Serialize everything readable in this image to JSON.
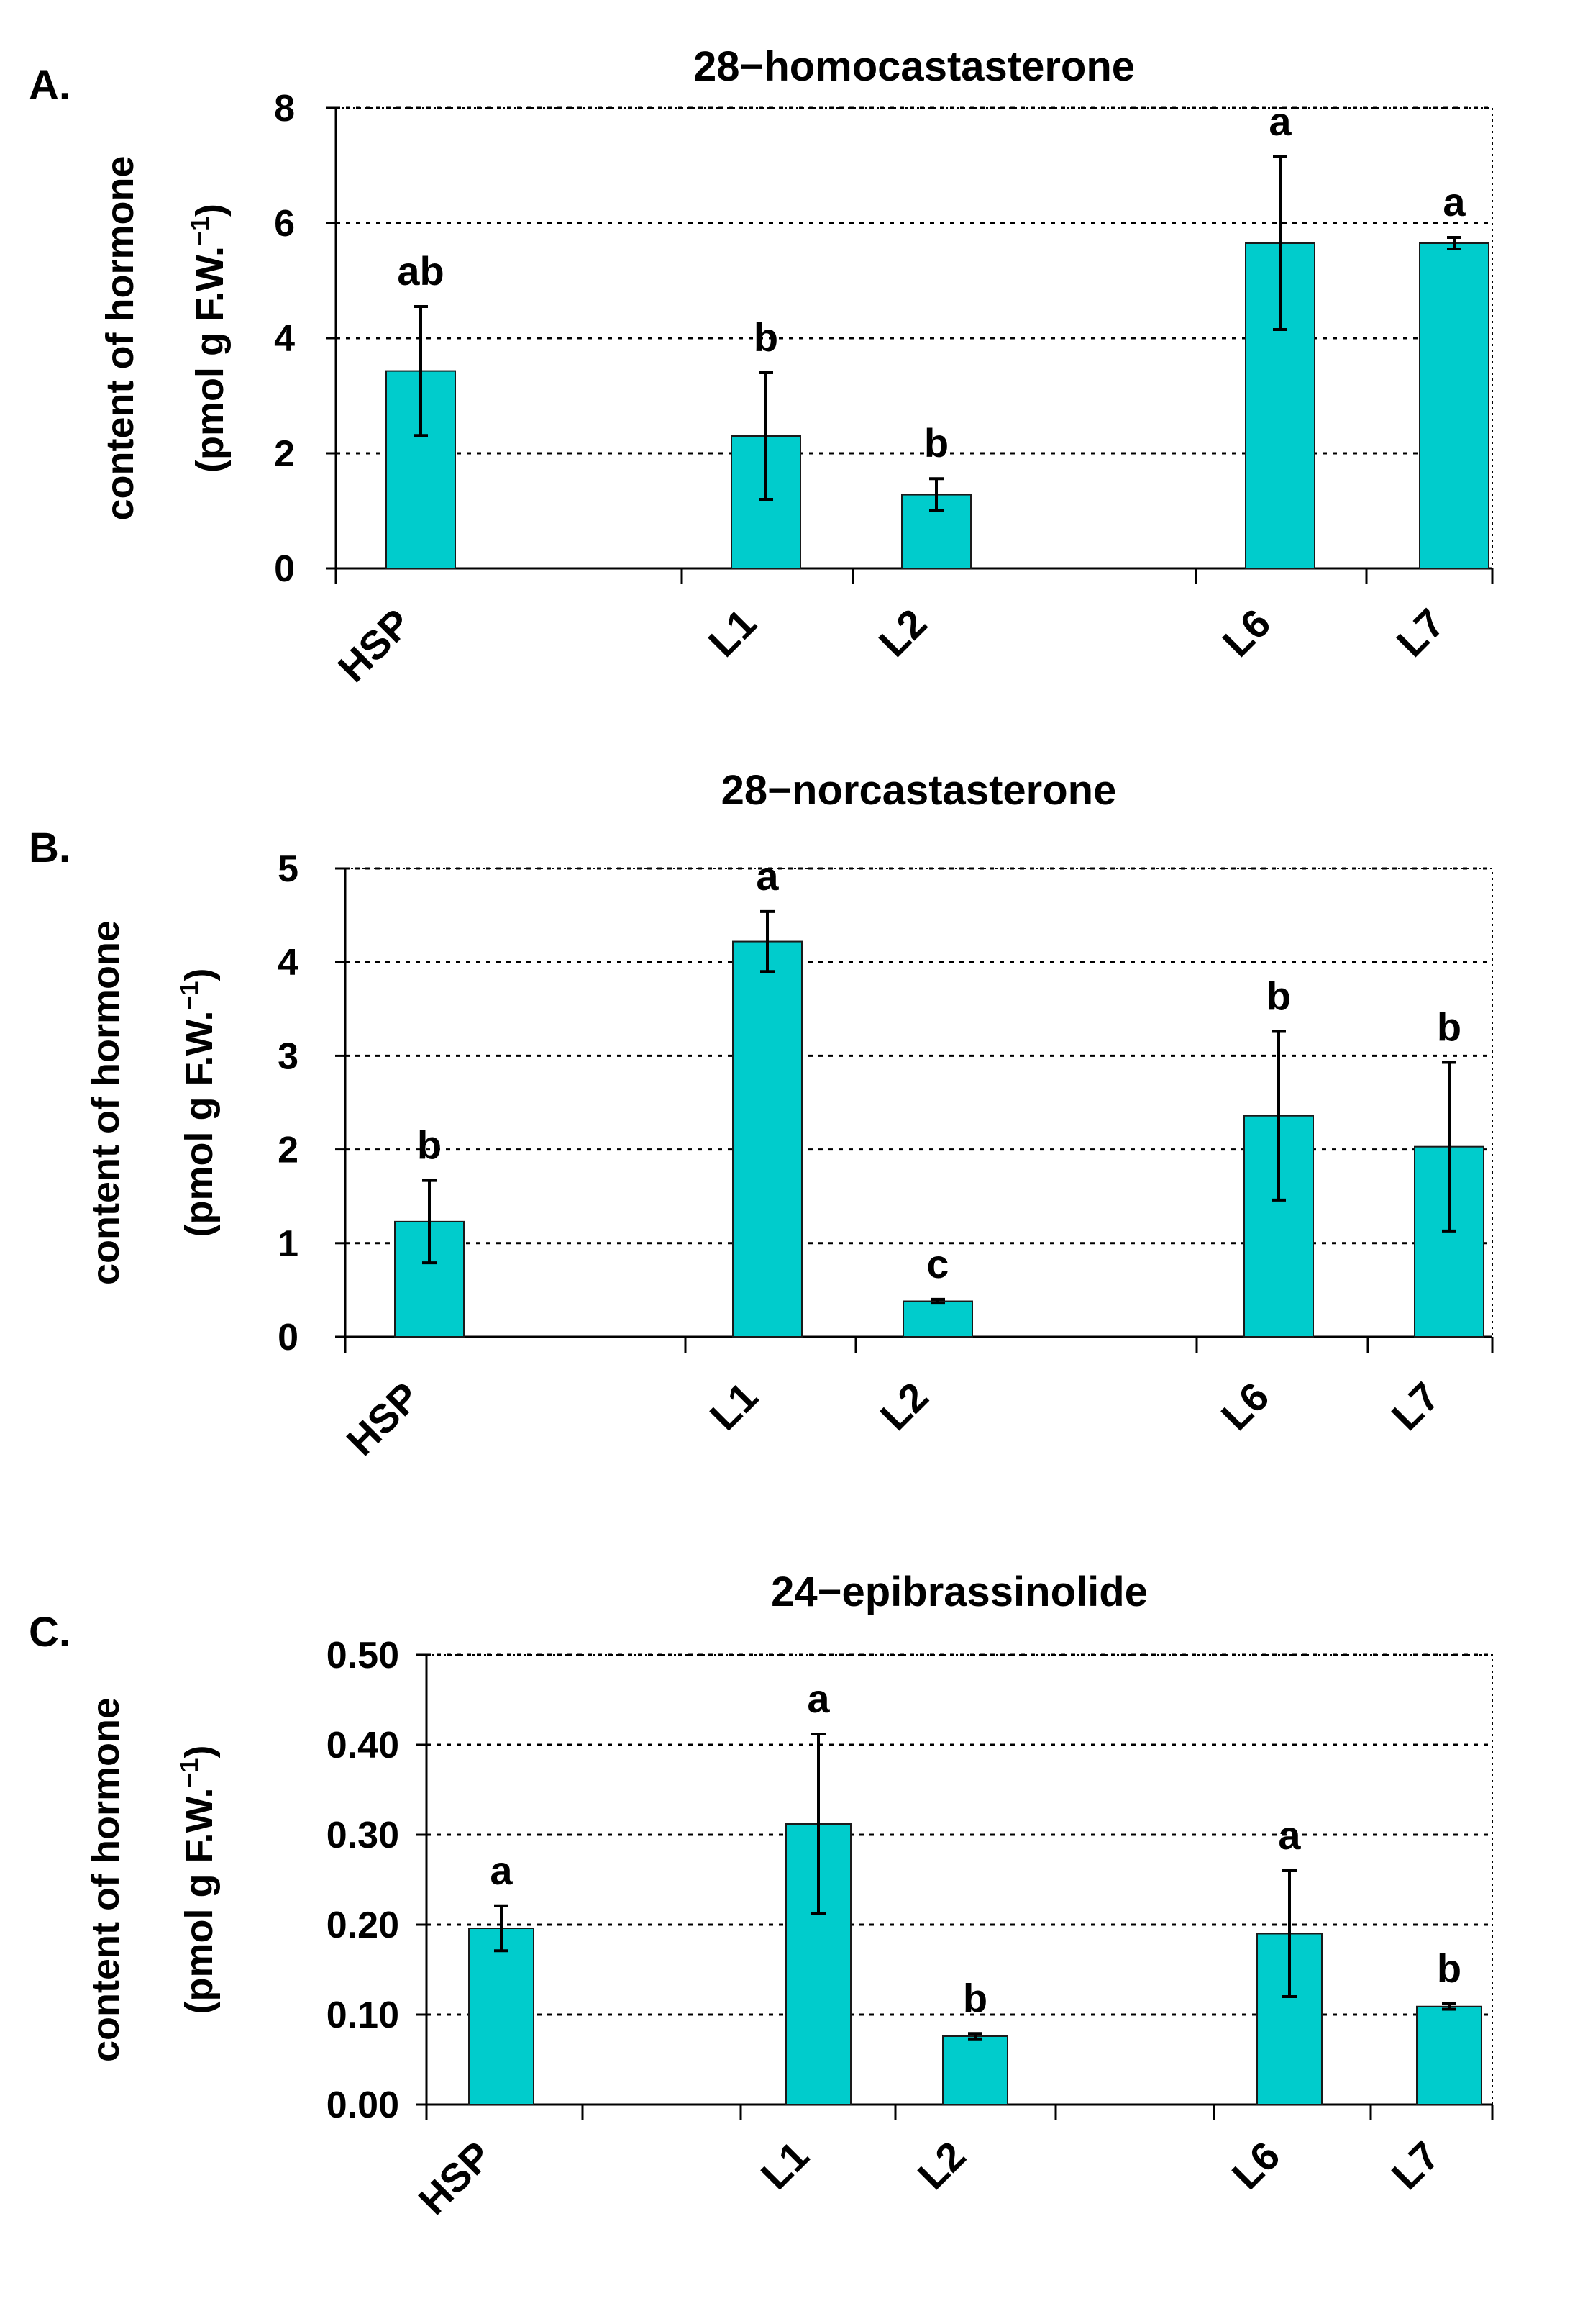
{
  "colors": {
    "bar": "#00CCCC",
    "error": "#000000"
  },
  "chart_data": [
    {
      "panel": "A.",
      "type": "bar",
      "title": "28−homocastasterone",
      "ylabel_line1": "content of hormone",
      "ylabel_line2": "(pmol g F.W.",
      "ylabel_sup": "−1",
      "ylabel_end": ")",
      "categories": [
        "HSP",
        "L1",
        "L2",
        "L6",
        "L7"
      ],
      "values": [
        3.43,
        2.3,
        1.28,
        5.65,
        5.65
      ],
      "errors": [
        1.12,
        1.1,
        0.28,
        1.5,
        0.1
      ],
      "letters": [
        "ab",
        "b",
        "b",
        "a",
        "a"
      ],
      "ylim": [
        0,
        8
      ],
      "yticks": [
        "0",
        "2",
        "4",
        "6",
        "8"
      ],
      "grid": true
    },
    {
      "panel": "B.",
      "type": "bar",
      "title": "28−norcastasterone",
      "ylabel_line1": "content of hormone",
      "ylabel_line2": "(pmol g F.W.",
      "ylabel_sup": "−1",
      "ylabel_end": ")",
      "categories": [
        "HSP",
        "L1",
        "L2",
        "L6",
        "L7"
      ],
      "values": [
        1.23,
        4.22,
        0.38,
        2.36,
        2.03
      ],
      "errors": [
        0.44,
        0.32,
        0.02,
        0.9,
        0.9
      ],
      "letters": [
        "b",
        "a",
        "c",
        "b",
        "b"
      ],
      "ylim": [
        0,
        5
      ],
      "yticks": [
        "0",
        "1",
        "2",
        "3",
        "4",
        "5"
      ],
      "grid": true
    },
    {
      "panel": "C.",
      "type": "bar",
      "title": "24−epibrassinolide",
      "ylabel_line1": "content of hormone",
      "ylabel_line2": "(pmol g F.W.",
      "ylabel_sup": "−1",
      "ylabel_end": ")",
      "categories": [
        "HSP",
        "L1",
        "L2",
        "L6",
        "L7"
      ],
      "values": [
        0.196,
        0.312,
        0.076,
        0.19,
        0.109
      ],
      "errors": [
        0.025,
        0.1,
        0.003,
        0.07,
        0.003
      ],
      "letters": [
        "a",
        "a",
        "b",
        "a",
        "b"
      ],
      "ylim": [
        0,
        0.5
      ],
      "yticks": [
        "0.00",
        "0.10",
        "0.20",
        "0.30",
        "0.40",
        "0.50"
      ],
      "grid": true
    }
  ]
}
